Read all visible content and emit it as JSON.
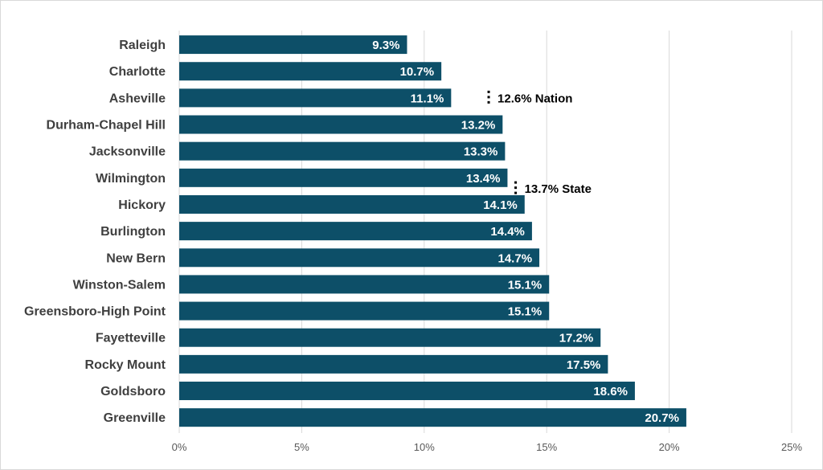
{
  "chart_data": {
    "type": "bar",
    "orientation": "horizontal",
    "categories": [
      "Raleigh",
      "Charlotte",
      "Asheville",
      "Durham-Chapel Hill",
      "Jacksonville",
      "Wilmington",
      "Hickory",
      "Burlington",
      "New Bern",
      "Winston-Salem",
      "Greensboro-High Point",
      "Fayetteville",
      "Rocky Mount",
      "Goldsboro",
      "Greenville"
    ],
    "values": [
      9.3,
      10.7,
      11.1,
      13.2,
      13.3,
      13.4,
      14.1,
      14.4,
      14.7,
      15.1,
      15.1,
      17.2,
      17.5,
      18.6,
      20.7
    ],
    "data_labels": [
      "9.3%",
      "10.7%",
      "11.1%",
      "13.2%",
      "13.3%",
      "13.4%",
      "14.1%",
      "14.4%",
      "14.7%",
      "15.1%",
      "15.1%",
      "17.2%",
      "17.5%",
      "18.6%",
      "20.7%"
    ],
    "xlim": [
      0,
      25
    ],
    "xticks": [
      0,
      5,
      10,
      15,
      20,
      25
    ],
    "xtick_labels": [
      "0%",
      "5%",
      "10%",
      "15%",
      "20%",
      "25%"
    ],
    "grid": "vertical",
    "title": "",
    "xlabel": "",
    "ylabel": "",
    "bar_color": "#0d4f68",
    "reference_markers": [
      {
        "label": "12.6% Nation",
        "value": 12.6
      },
      {
        "label": "13.7% State",
        "value": 13.7
      }
    ]
  }
}
